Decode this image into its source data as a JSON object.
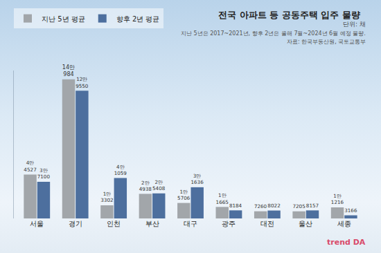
{
  "chart_data": {
    "type": "bar",
    "title": "전국 아파트 등 공동주택 입주 물량",
    "subtitle": "단위: 채",
    "annotations": [
      "지난 5년은 2017~2021년, 향후 2년은 올해 7월~2024년 6월 예정 물량.",
      "자료: 한국부동산원, 국토교통부",
      "trend DA"
    ],
    "categories": [
      "서울",
      "경기",
      "인천",
      "부산",
      "대구",
      "광주",
      "대전",
      "울산",
      "세종"
    ],
    "series": [
      {
        "name": "지난 5년 평균",
        "color": "#a2a6aa",
        "values": [
          44527,
          140984,
          13302,
          24938,
          15706,
          11665,
          7260,
          7205,
          11216
        ],
        "value_labels": [
          "4만\n4527",
          "14만\n984",
          "1만\n3302",
          "2만\n4938",
          "1만\n5706",
          "1만\n1665",
          "7260",
          "7205",
          "1만\n1216"
        ]
      },
      {
        "name": "향후 2년 평균",
        "color": "#4d6f9e",
        "values": [
          37100,
          129550,
          41059,
          25408,
          31636,
          8184,
          8022,
          8157,
          3166
        ],
        "value_labels": [
          "3만\n7100",
          "12만\n9550",
          "4만\n1059",
          "2만\n5408",
          "3만\n1636",
          "8184",
          "8022",
          "8157",
          "3166"
        ]
      }
    ],
    "ylim": [
      0,
      150000
    ],
    "yticks": [],
    "tick_labels": "x",
    "data_labels": true,
    "legend": "upper left",
    "grid": false
  }
}
